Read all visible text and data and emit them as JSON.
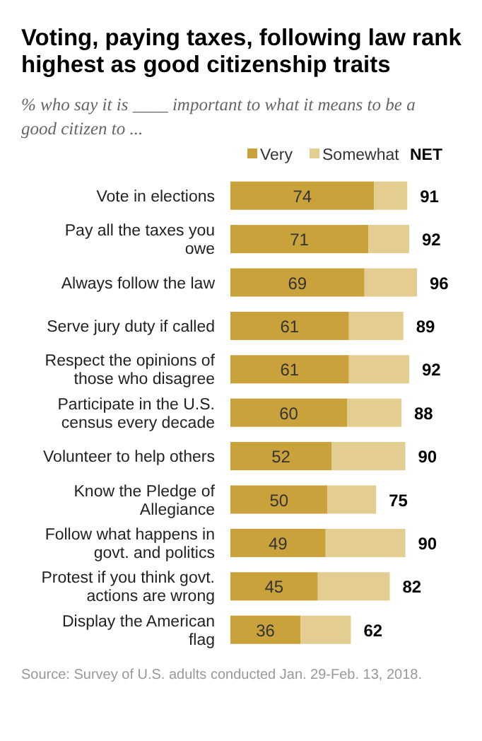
{
  "chart_data": {
    "type": "bar",
    "orientation": "horizontal",
    "stacked": true,
    "title": "Voting, paying taxes, following law rank highest as good citizenship traits",
    "subtitle": "% who say it is ____ important to what it means to be a good citizen to ...",
    "categories": [
      "Vote in elections",
      "Pay all the taxes you owe",
      "Always follow the law",
      "Serve jury duty if called",
      "Respect the opinions of those who disagree",
      "Participate in the U.S. census every decade",
      "Volunteer to help others",
      "Know the Pledge of Allegiance",
      "Follow what happens in govt. and politics",
      "Protest if you think govt. actions are wrong",
      "Display the American flag"
    ],
    "series": [
      {
        "name": "Very",
        "color": "#c9a23c",
        "values": [
          74,
          71,
          69,
          61,
          61,
          60,
          52,
          50,
          49,
          45,
          36
        ],
        "value_labels": [
          "74",
          "71",
          "69",
          "61",
          "61",
          "60",
          "52",
          "50",
          "49",
          "45",
          "36"
        ]
      },
      {
        "name": "Somewhat",
        "color": "#e3cd90",
        "values": [
          17,
          21,
          27,
          28,
          31,
          28,
          38,
          25,
          41,
          37,
          26
        ]
      }
    ],
    "totals": [
      "91",
      "92",
      "96",
      "89",
      "92",
      "88",
      "90",
      "75",
      "90",
      "82",
      "62"
    ],
    "legend": "top right",
    "annotations": [
      "NET",
      "Source: Survey of U.S. adults conducted Jan. 29-Feb. 13, 2018."
    ]
  }
}
